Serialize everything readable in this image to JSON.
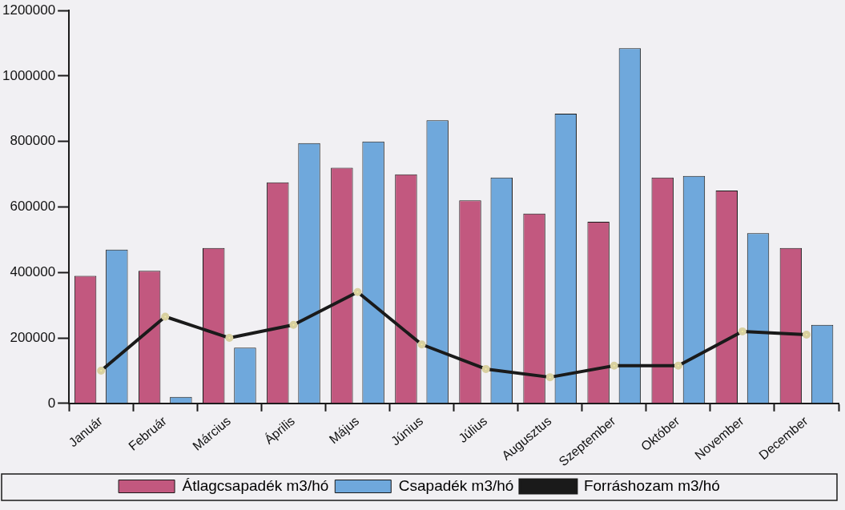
{
  "chart_data": {
    "type": "bar",
    "categories": [
      "Január",
      "Február",
      "Március",
      "Április",
      "Május",
      "Június",
      "Július",
      "Augusztus",
      "Szeptember",
      "Október",
      "November",
      "December"
    ],
    "series": [
      {
        "name": "Átlagcsapadék m3/hó",
        "color": "#c2587f",
        "values": [
          390000,
          405000,
          475000,
          675000,
          720000,
          700000,
          620000,
          580000,
          555000,
          690000,
          650000,
          475000
        ]
      },
      {
        "name": "Csapadék m3/hó",
        "color": "#6fa8dc",
        "values": [
          470000,
          20000,
          170000,
          795000,
          800000,
          865000,
          690000,
          885000,
          1085000,
          695000,
          520000,
          240000
        ]
      },
      {
        "name": "Forráshozam m3/hó",
        "type": "line",
        "color": "#1a1a1a",
        "marker": "circle",
        "values": [
          100000,
          265000,
          200000,
          240000,
          340000,
          180000,
          105000,
          80000,
          115000,
          115000,
          220000,
          210000
        ]
      }
    ],
    "ylim": [
      0,
      1200000
    ],
    "yticks": [
      0,
      200000,
      400000,
      600000,
      800000,
      1000000,
      1200000
    ],
    "grid": false,
    "legend": "bottom"
  }
}
